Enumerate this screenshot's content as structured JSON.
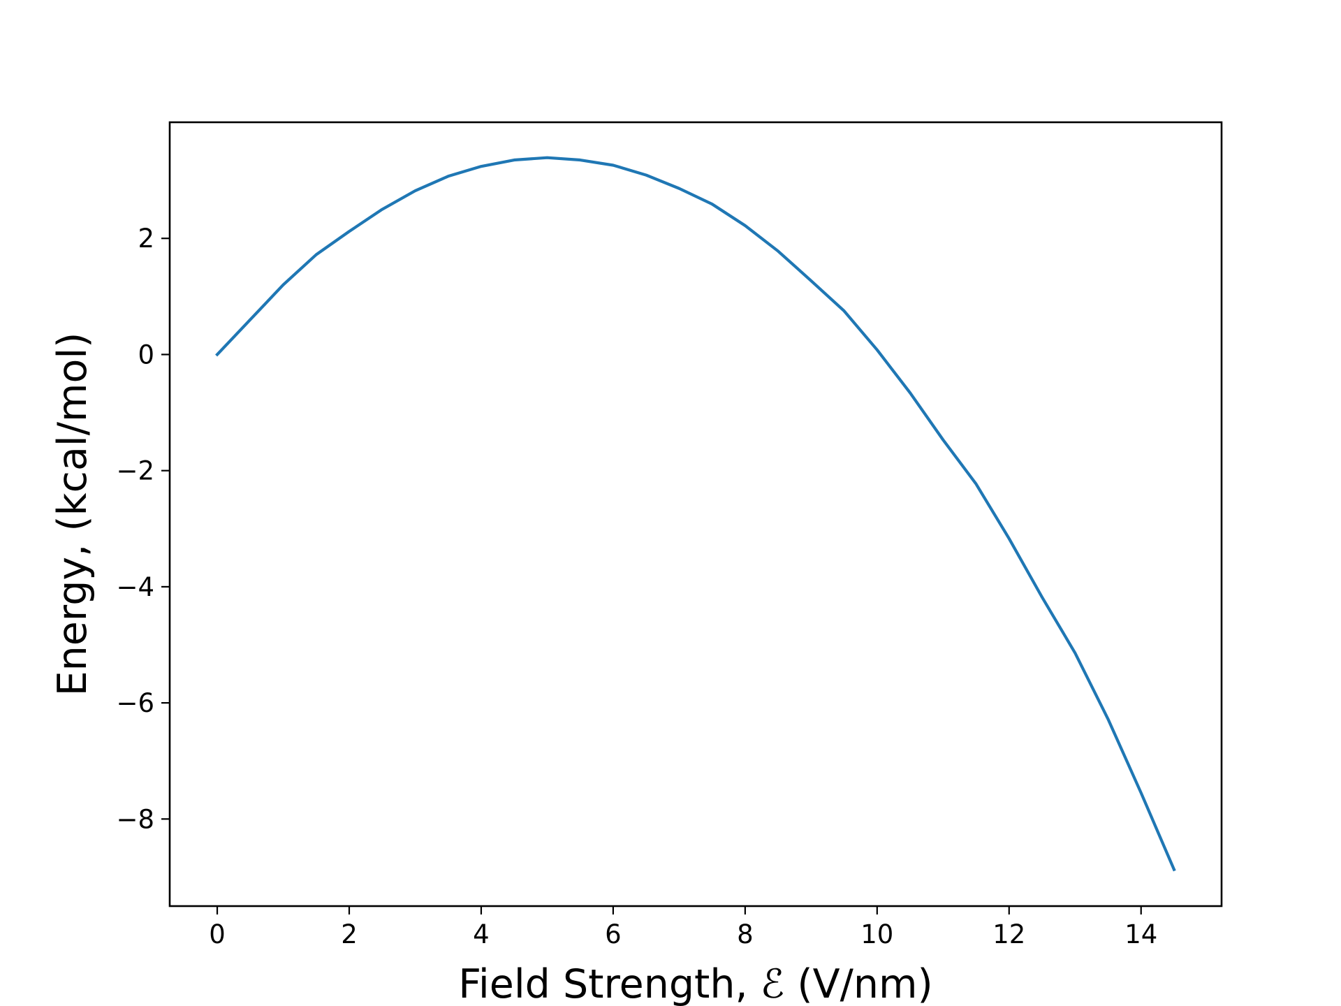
{
  "chart_data": {
    "type": "line",
    "title": "",
    "xlabel": "Field Strength, ℰ (V/nm)",
    "ylabel": "Energy, (kcal/mol)",
    "xlim": [
      -0.72,
      15.22
    ],
    "ylim": [
      -9.5,
      4.0
    ],
    "xticks": [
      0,
      2,
      4,
      6,
      8,
      10,
      12,
      14
    ],
    "yticks": [
      -8,
      -6,
      -4,
      -2,
      0,
      2
    ],
    "xtick_labels": [
      "0",
      "2",
      "4",
      "6",
      "8",
      "10",
      "12",
      "14"
    ],
    "ytick_labels": [
      "−8",
      "−6",
      "−4",
      "−2",
      "0",
      "2"
    ],
    "grid": false,
    "legend": false,
    "series": [
      {
        "color": "#1f77b4",
        "x": [
          0,
          0.5,
          1,
          1.5,
          2,
          2.5,
          3,
          3.5,
          4,
          4.5,
          5,
          5.5,
          6,
          6.5,
          7,
          7.5,
          8,
          8.5,
          9,
          9.5,
          10,
          10.5,
          11,
          11.5,
          12,
          12.5,
          13,
          13.5,
          14,
          14.5
        ],
        "y": [
          0.0,
          0.6,
          1.2,
          1.72,
          2.12,
          2.5,
          2.82,
          3.07,
          3.24,
          3.35,
          3.39,
          3.35,
          3.26,
          3.09,
          2.86,
          2.59,
          2.22,
          1.78,
          1.27,
          0.75,
          0.08,
          -0.66,
          -1.47,
          -2.23,
          -3.17,
          -4.18,
          -5.14,
          -6.28,
          -7.55,
          -8.87
        ]
      }
    ]
  }
}
